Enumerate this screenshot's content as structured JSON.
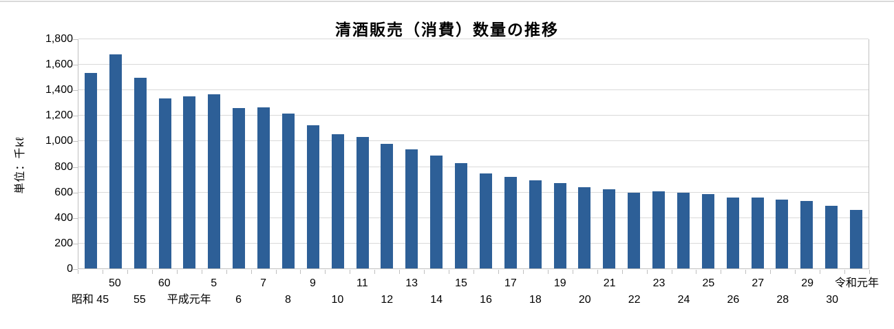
{
  "page": {
    "top_border_color": "#d9d9d9",
    "background_color": "#ffffff"
  },
  "chart_data": {
    "type": "bar",
    "title": "清酒販売（消費）数量の推移",
    "ylabel": "単位：千kℓ",
    "xlabel": "",
    "ylim": [
      0,
      1800
    ],
    "ytick_interval": 200,
    "ytick_labels": [
      "0",
      "200",
      "400",
      "600",
      "800",
      "1,000",
      "1,200",
      "1,400",
      "1,600",
      "1,800"
    ],
    "grid": true,
    "legend": false,
    "bar_color": "#2d5f97",
    "gridline_color": "#d9d9d9",
    "axis_color": "#bfbfbf",
    "categories": [
      "昭和 45",
      "50",
      "55",
      "60",
      "平成元年",
      "5",
      "6",
      "7",
      "8",
      "9",
      "10",
      "11",
      "12",
      "13",
      "14",
      "15",
      "16",
      "17",
      "18",
      "19",
      "20",
      "21",
      "22",
      "23",
      "24",
      "25",
      "26",
      "27",
      "28",
      "29",
      "30",
      "令和元年"
    ],
    "values": [
      1535,
      1680,
      1500,
      1335,
      1350,
      1365,
      1258,
      1263,
      1218,
      1126,
      1056,
      1032,
      978,
      937,
      888,
      829,
      748,
      721,
      694,
      671,
      637,
      624,
      593,
      607,
      594,
      583,
      558,
      556,
      538,
      530,
      491,
      457
    ],
    "x_label_layout": "alternating two rows: even-position categories on upper row, odd-position categories on lower row"
  }
}
